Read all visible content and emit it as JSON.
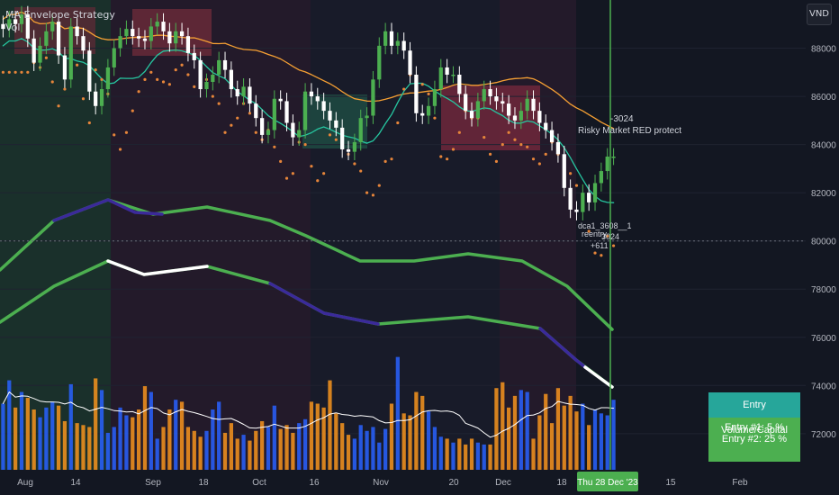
{
  "header": {
    "indicator_title": "MA Envelope Strategy",
    "volume_label": "Vol",
    "currency": "VND"
  },
  "annotations": {
    "risky_value": "-3024",
    "risky_text": "Risky Market RED protect",
    "dca_label": "dca1_3608__1",
    "reentry_label": "reentry",
    "reentry_value": "3024",
    "reentry_plus": "+611"
  },
  "info_box": {
    "title": "Entry Volume/Capital",
    "entry1": "Entry #1: 5 %",
    "entry2": "Entry #2: 25 %"
  },
  "colors": {
    "background": "#131722",
    "up": "#4caf50",
    "down": "#ffffff",
    "vol_up": "#2962ff",
    "vol_down": "#f7941d",
    "ma_orange": "#f6a033",
    "ma_teal": "#26c6a0",
    "cursor_line": "#4caf50",
    "axis_text": "#b2b5be"
  },
  "chart_data": {
    "type": "candlestick",
    "y_axis": {
      "min": 70500,
      "max": 90000,
      "ticks": [
        72000,
        74000,
        76000,
        78000,
        80000,
        82000,
        84000,
        86000,
        88000
      ],
      "tick_labels": [
        "72000",
        "74000",
        "76000",
        "78000",
        "80000",
        "82000",
        "84000",
        "86000",
        "88000"
      ]
    },
    "x_axis": {
      "labels": [
        "Aug",
        "14",
        "Sep",
        "18",
        "Oct",
        "16",
        "Nov",
        "20",
        "Dec",
        "18",
        "Thu 28 Dec '23",
        "15",
        "Feb"
      ],
      "highlighted": "Thu 28 Dec '23"
    },
    "close": [
      88800,
      89200,
      89000,
      89400,
      88400,
      87400,
      88100,
      88700,
      89100,
      87700,
      86700,
      88900,
      88500,
      87900,
      86200,
      85600,
      86300,
      87200,
      88000,
      88500,
      88800,
      88500,
      88400,
      88300,
      88900,
      89100,
      88700,
      88200,
      88700,
      88500,
      87800,
      87500,
      86300,
      86600,
      86900,
      87500,
      87100,
      86300,
      86000,
      86400,
      85700,
      85100,
      84400,
      84600,
      85900,
      85800,
      84900,
      84300,
      84600,
      86200,
      86000,
      85800,
      85400,
      85000,
      84700,
      83800,
      83700,
      84100,
      85100,
      85200,
      86700,
      88100,
      88700,
      88100,
      88300,
      87900,
      86900,
      85300,
      85200,
      85600,
      86300,
      87200,
      86900,
      86900,
      86100,
      85400,
      85100,
      85800,
      86300,
      86000,
      85800,
      85700,
      85200,
      85000,
      85400,
      85900,
      85400,
      84900,
      84600,
      84100,
      83600,
      82200,
      81300,
      81200,
      82000,
      81600,
      82400,
      82900,
      83500,
      83500
    ],
    "volume": [
      3.4,
      4.6,
      3.2,
      4.0,
      3.7,
      3.1,
      2.7,
      3.2,
      3.5,
      3.3,
      2.5,
      4.4,
      2.4,
      2.3,
      2.2,
      4.7,
      4.1,
      1.9,
      2.2,
      3.2,
      2.8,
      2.7,
      3.1,
      4.3,
      4.0,
      1.6,
      2.2,
      3.1,
      3.6,
      3.5,
      2.2,
      2.0,
      1.7,
      2.0,
      3.1,
      3.5,
      1.9,
      2.4,
      1.6,
      1.8,
      1.5,
      2.0,
      2.5,
      2.2,
      3.3,
      2.1,
      2.3,
      1.9,
      2.4,
      2.6,
      3.5,
      3.4,
      3.2,
      4.6,
      2.9,
      2.4,
      1.8,
      1.6,
      2.3,
      2.0,
      2.2,
      1.4,
      2.1,
      3.4,
      5.8,
      2.9,
      2.8,
      4.0,
      3.8,
      3.0,
      2.2,
      1.7,
      1.6,
      1.4,
      1.6,
      1.3,
      1.6,
      1.4,
      1.3,
      1.3,
      4.2,
      4.5,
      3.2,
      3.8,
      4.1,
      4.0,
      1.6,
      2.8,
      3.9,
      2.4,
      4.2,
      3.3,
      3.8,
      3.0,
      3.4,
      2.3,
      3.1,
      2.9,
      2.8,
      3.6
    ]
  }
}
